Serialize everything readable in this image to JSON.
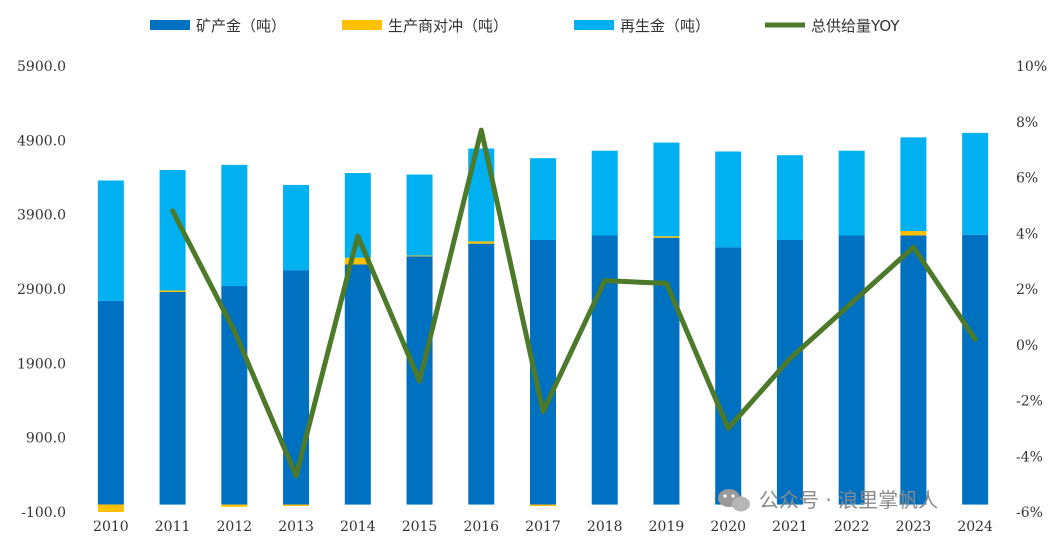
{
  "chart_data": {
    "type": "bar",
    "title": "",
    "categories": [
      "2010",
      "2011",
      "2012",
      "2013",
      "2014",
      "2015",
      "2016",
      "2017",
      "2018",
      "2019",
      "2020",
      "2021",
      "2022",
      "2023",
      "2024"
    ],
    "series": [
      {
        "name": "矿产金（吨）",
        "type": "bar",
        "axis": "left",
        "color": "#0070C0",
        "values": [
          2740,
          2860,
          2940,
          3150,
          3230,
          3340,
          3510,
          3560,
          3620,
          3590,
          3460,
          3560,
          3620,
          3620,
          3630
        ]
      },
      {
        "name": "生产商对冲（吨）",
        "type": "bar",
        "axis": "left",
        "color": "#FFC000",
        "values": [
          -100,
          20,
          -30,
          -20,
          90,
          10,
          30,
          -20,
          0,
          20,
          0,
          0,
          0,
          60,
          0
        ]
      },
      {
        "name": "再生金（吨）",
        "type": "bar",
        "axis": "left",
        "color": "#00B0F0",
        "values": [
          1620,
          1620,
          1630,
          1150,
          1140,
          1090,
          1250,
          1100,
          1140,
          1260,
          1290,
          1140,
          1140,
          1260,
          1370
        ]
      },
      {
        "name": "总供给量YOY",
        "type": "line",
        "axis": "right",
        "color": "#4C7A2A",
        "values": [
          null,
          4.8,
          0.5,
          -4.7,
          3.9,
          -1.3,
          7.7,
          -2.4,
          2.3,
          2.2,
          -3.0,
          -0.5,
          1.5,
          3.5,
          0.2
        ]
      }
    ],
    "left_axis": {
      "min": -100,
      "max": 5900,
      "ticks": [
        "-100.0",
        "900.0",
        "1900.0",
        "2900.0",
        "3900.0",
        "4900.0",
        "5900.0"
      ]
    },
    "right_axis": {
      "min": -6,
      "max": 10,
      "ticks": [
        "-6%",
        "-4%",
        "-2%",
        "0%",
        "2%",
        "4%",
        "6%",
        "8%",
        "10%"
      ]
    },
    "legend_position": "top",
    "grid": false
  },
  "watermark": {
    "text": "公众号 · 浪里掌帆人",
    "icon": "wechat-icon"
  }
}
